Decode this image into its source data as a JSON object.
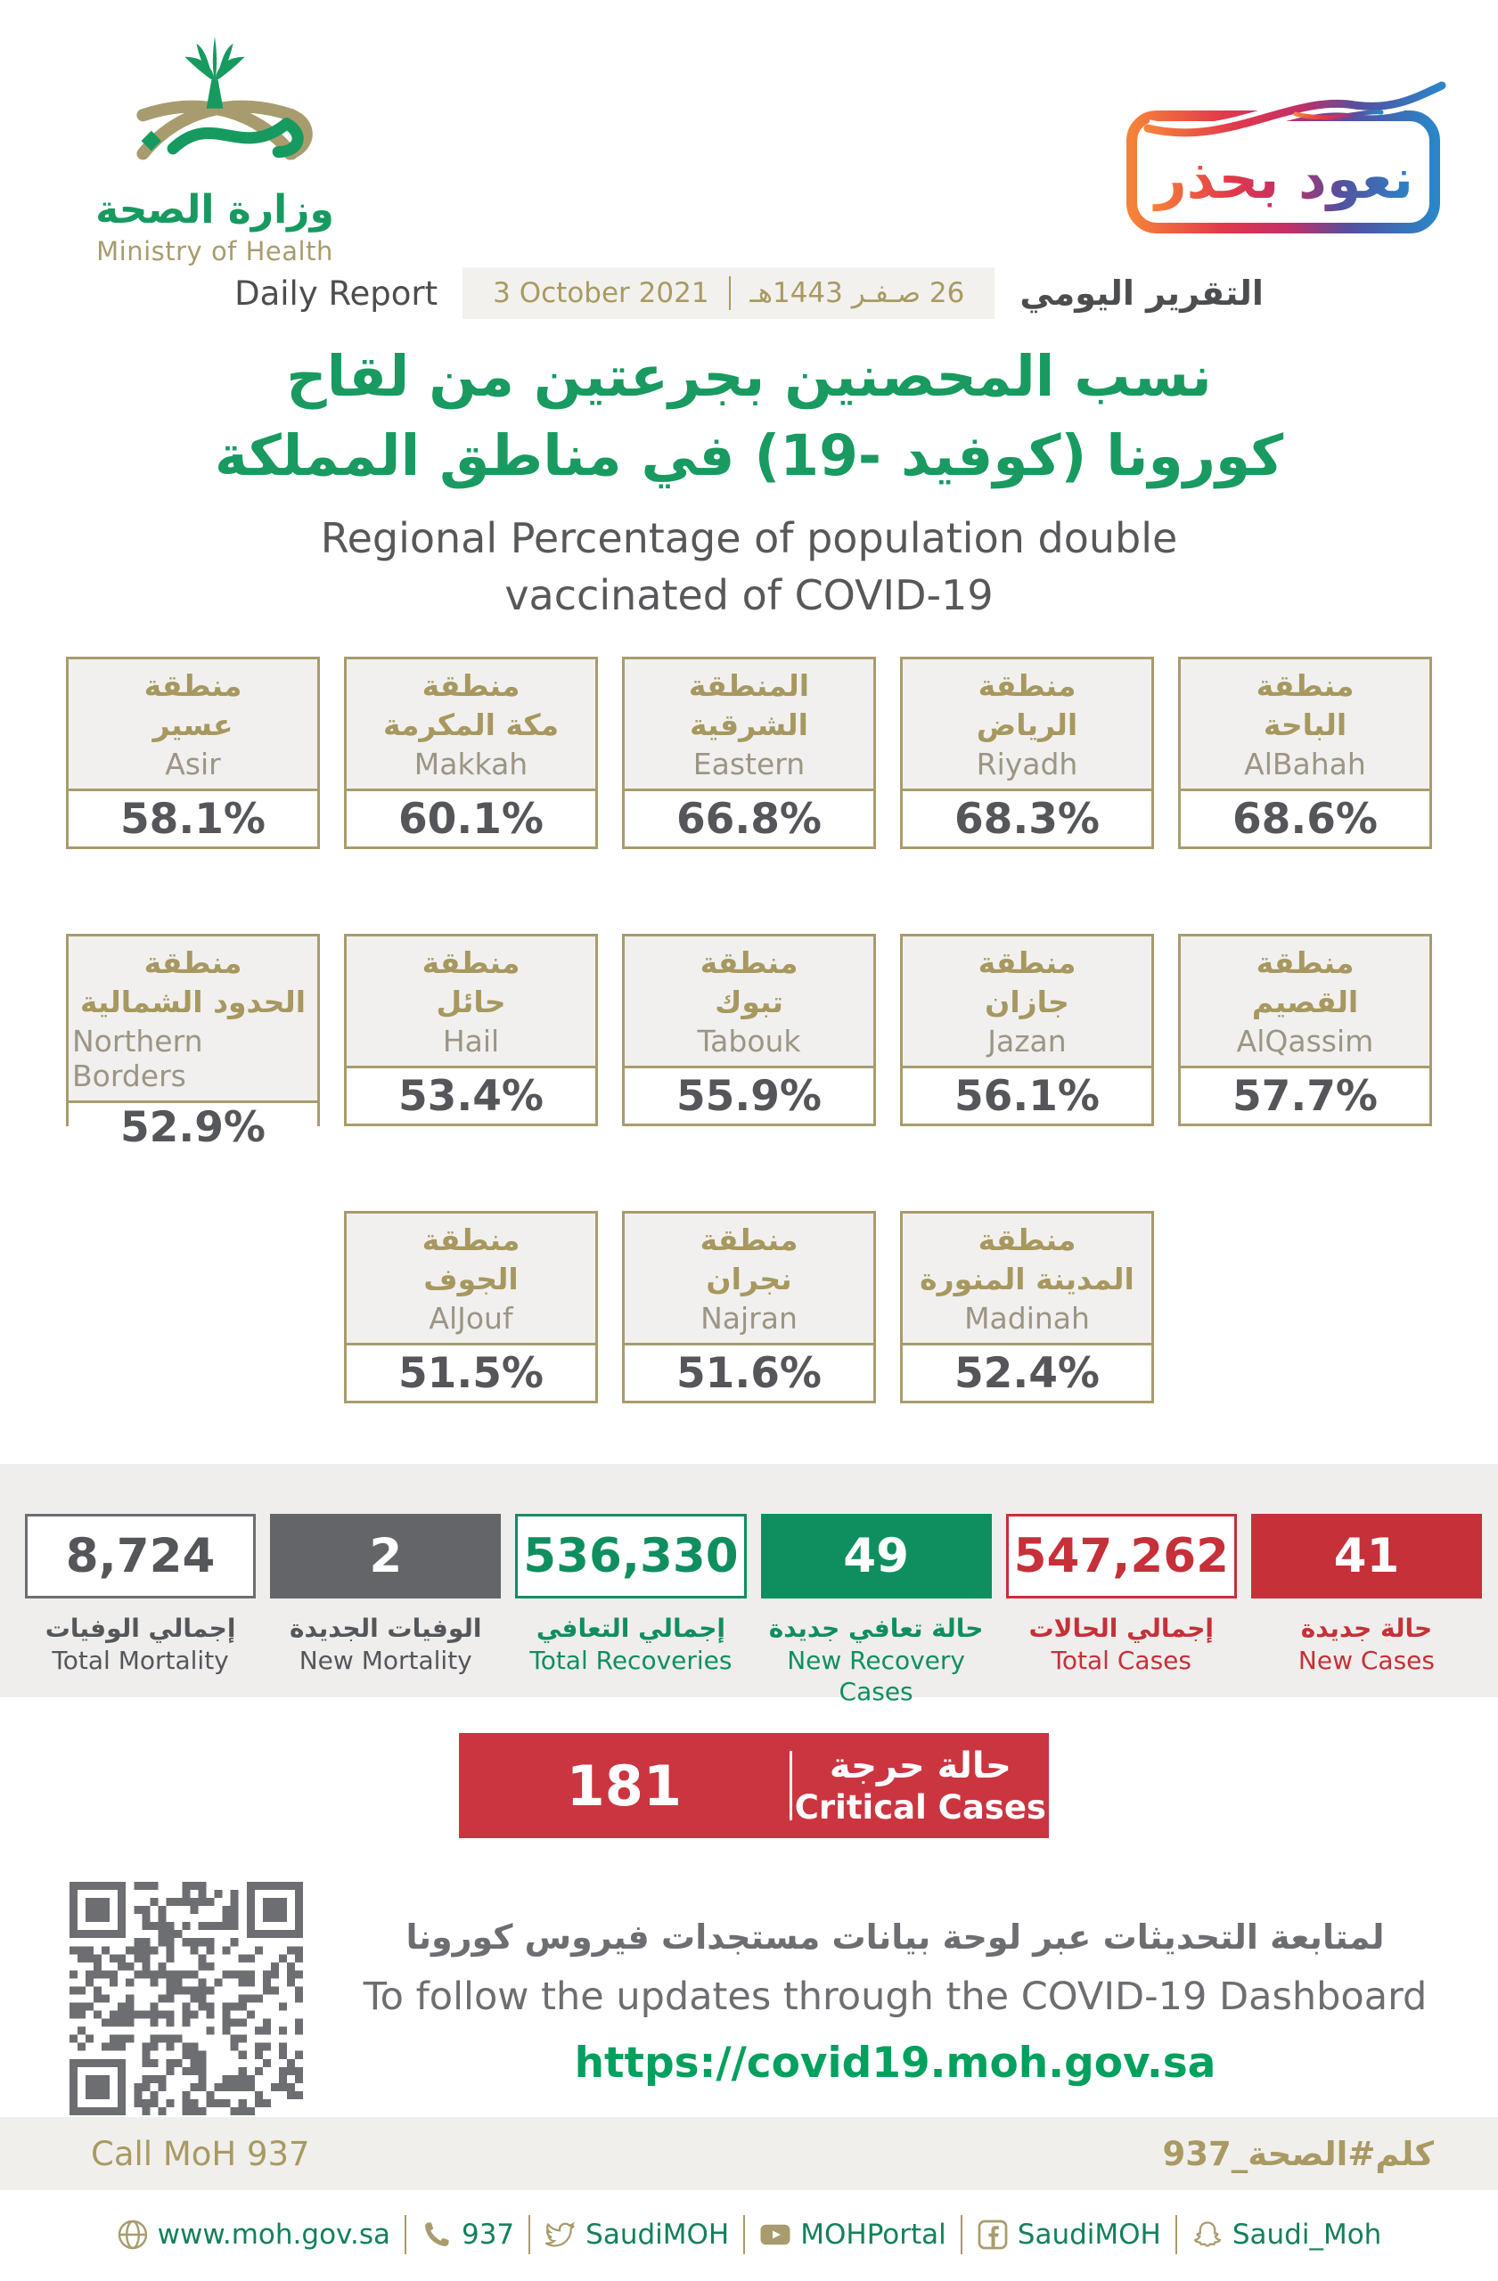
{
  "logo": {
    "title_ar": "وزارة الصحة",
    "title_en": "Ministry of Health"
  },
  "badge": {
    "text": "نعود بحذر"
  },
  "report_bar": {
    "label_en": "Daily Report",
    "date_gregorian": "3 October 2021",
    "date_hijri": "26 صـفـر 1443هـ",
    "label_ar": "التقرير اليومي"
  },
  "title": {
    "ar1": "نسب المحصنين بجرعتين من لقاح",
    "ar2": "كورونا (كوفيد -19) في مناطق المملكة",
    "en1": "Regional Percentage of population double",
    "en2": "vaccinated of COVID-19"
  },
  "regions": {
    "cards": [
      {
        "ar1": "منطقة",
        "ar2": "عسير",
        "en": "Asir",
        "value": "58.1%"
      },
      {
        "ar1": "منطقة",
        "ar2": "مكة المكرمة",
        "en": "Makkah",
        "value": "60.1%"
      },
      {
        "ar1": "المنطقة",
        "ar2": "الشرقية",
        "en": "Eastern",
        "value": "66.8%"
      },
      {
        "ar1": "منطقة",
        "ar2": "الرياض",
        "en": "Riyadh",
        "value": "68.3%"
      },
      {
        "ar1": "منطقة",
        "ar2": "الباحة",
        "en": "AlBahah",
        "value": "68.6%"
      },
      {
        "ar1": "منطقة",
        "ar2": "الحدود الشمالية",
        "en": "Northern Borders",
        "value": "52.9%"
      },
      {
        "ar1": "منطقة",
        "ar2": "حائل",
        "en": "Hail",
        "value": "53.4%"
      },
      {
        "ar1": "منطقة",
        "ar2": "تبوك",
        "en": "Tabouk",
        "value": "55.9%"
      },
      {
        "ar1": "منطقة",
        "ar2": "جازان",
        "en": "Jazan",
        "value": "56.1%"
      },
      {
        "ar1": "منطقة",
        "ar2": "القصيم",
        "en": "AlQassim",
        "value": "57.7%"
      },
      {
        "ar1": "منطقة",
        "ar2": "الجوف",
        "en": "AlJouf",
        "value": "51.5%"
      },
      {
        "ar1": "منطقة",
        "ar2": "نجران",
        "en": "Najran",
        "value": "51.6%"
      },
      {
        "ar1": "منطقة",
        "ar2": "المدينة المنورة",
        "en": "Madinah",
        "value": "52.4%"
      }
    ]
  },
  "stats": {
    "items": [
      {
        "value": "8,724",
        "label_ar": "إجمالي الوفيات",
        "label_en": "Total Mortality"
      },
      {
        "value": "2",
        "label_ar": "الوفيات الجديدة",
        "label_en": "New Mortality"
      },
      {
        "value": "536,330",
        "label_ar": "إجمالي التعافي",
        "label_en": "Total Recoveries"
      },
      {
        "value": "49",
        "label_ar": "حالة تعافي جديدة",
        "label_en": "New Recovery Cases"
      },
      {
        "value": "547,262",
        "label_ar": "إجمالي الحالات",
        "label_en": "Total Cases"
      },
      {
        "value": "41",
        "label_ar": "حالة جديدة",
        "label_en": "New Cases"
      }
    ]
  },
  "critical": {
    "value": "181",
    "label_ar": "حالة حرجة",
    "label_en": "Critical Cases"
  },
  "dashboard": {
    "line_ar": "لمتابعة التحديثات عبر لوحة بيانات مستجدات فيروس كورونا",
    "line_en": "To follow the updates through the COVID-19 Dashboard",
    "url": "https://covid19.moh.gov.sa"
  },
  "call_band": {
    "en": "Call MoH 937",
    "ar": "كلم#الصحة_937"
  },
  "footer": {
    "items": [
      {
        "label": "www.moh.gov.sa"
      },
      {
        "label": "937"
      },
      {
        "label": "SaudiMOH"
      },
      {
        "label": "MOHPortal"
      },
      {
        "label": "SaudiMOH"
      },
      {
        "label": "Saudi_Moh"
      }
    ]
  },
  "colors": {
    "green": "#169a60",
    "tan": "#a89c6e",
    "red": "#c63038",
    "dark_gray": "#58595b"
  },
  "chart_data": {
    "type": "table",
    "title": "Regional Percentage of population double vaccinated of COVID-19",
    "categories": [
      "Asir",
      "Makkah",
      "Eastern",
      "Riyadh",
      "AlBahah",
      "Northern Borders",
      "Hail",
      "Tabouk",
      "Jazan",
      "AlQassim",
      "AlJouf",
      "Najran",
      "Madinah"
    ],
    "values": [
      58.1,
      60.1,
      66.8,
      68.3,
      68.6,
      52.9,
      53.4,
      55.9,
      56.1,
      57.7,
      51.5,
      51.6,
      52.4
    ],
    "unit": "%",
    "totals": {
      "total_mortality": 8724,
      "new_mortality": 2,
      "total_recoveries": 536330,
      "new_recovery_cases": 49,
      "total_cases": 547262,
      "new_cases": 41,
      "critical_cases": 181
    }
  }
}
